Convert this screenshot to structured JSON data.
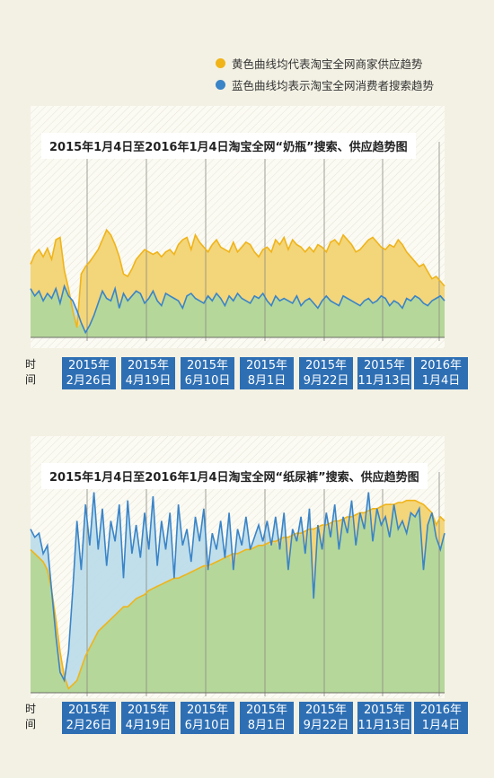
{
  "legend": {
    "supply_label": "黄色曲线均代表淘宝全网商家供应趋势",
    "search_label": "蓝色曲线均表示淘宝全网消费者搜索趋势",
    "supply_color": "#f0b419",
    "search_color": "#3a84c8"
  },
  "time_label_chars": [
    "时",
    "间"
  ],
  "colors": {
    "supply_fill": "#f3d57a",
    "supply_line": "#f0b419",
    "search_fill_upper": "#b9dbea",
    "search_line": "#3a84c8",
    "overlap_fill": "#b5d79a",
    "tick_bg": "#2e6fb4"
  },
  "chart_data": [
    {
      "type": "area",
      "title": "2015年1月4日至2016年1月4日淘宝全网“奶瓶”搜索、供应趋势图",
      "x_tick_labels": [
        [
          "2015年",
          "2月26日"
        ],
        [
          "2015年",
          "4月19日"
        ],
        [
          "2015年",
          "6月10日"
        ],
        [
          "2015年",
          "8月1日"
        ],
        [
          "2015年",
          "9月22日"
        ],
        [
          "2015年",
          "11月13日"
        ],
        [
          "2016年",
          "1月4日"
        ]
      ],
      "x_unit": "week index (0 = 2015年1月4日, 52 = 2016年1月4日)",
      "y_unit": "relative index (0–100), no printed scale",
      "series": [
        {
          "name": "供应",
          "values": [
            60,
            68,
            72,
            66,
            73,
            64,
            80,
            82,
            55,
            40,
            22,
            8,
            52,
            58,
            62,
            67,
            72,
            80,
            88,
            84,
            76,
            66,
            52,
            50,
            56,
            64,
            68,
            72,
            70,
            68,
            70,
            66,
            70,
            72,
            68,
            76,
            80,
            82,
            72,
            84,
            78,
            74,
            70,
            76,
            80,
            74,
            72,
            70,
            78,
            70,
            74,
            78,
            76,
            70,
            66,
            72,
            74,
            70,
            80,
            76,
            82,
            72,
            80,
            76,
            74,
            70,
            74,
            70,
            76,
            74,
            70,
            78,
            80,
            76,
            84,
            80,
            76,
            70,
            72,
            76,
            80,
            82,
            78,
            74,
            72,
            76,
            74,
            80,
            76,
            70,
            66,
            62,
            58,
            60,
            54,
            48,
            50,
            46,
            42
          ]
        },
        {
          "name": "搜索",
          "values": [
            40,
            34,
            38,
            30,
            36,
            32,
            40,
            28,
            42,
            34,
            30,
            22,
            12,
            4,
            10,
            18,
            28,
            38,
            32,
            30,
            40,
            24,
            36,
            30,
            34,
            38,
            36,
            28,
            32,
            38,
            30,
            26,
            36,
            34,
            32,
            30,
            24,
            34,
            36,
            32,
            30,
            28,
            34,
            30,
            36,
            32,
            26,
            34,
            30,
            36,
            32,
            30,
            28,
            34,
            32,
            36,
            30,
            26,
            34,
            30,
            32,
            30,
            28,
            34,
            26,
            30,
            32,
            28,
            24,
            30,
            34,
            30,
            28,
            26,
            34,
            32,
            30,
            28,
            26,
            30,
            32,
            28,
            30,
            34,
            32,
            26,
            30,
            28,
            24,
            32,
            30,
            34,
            32,
            28,
            26,
            30,
            32,
            34,
            30
          ]
        }
      ]
    },
    {
      "type": "area",
      "title": "2015年1月4日至2016年1月4日淘宝全网“纸尿裤”搜索、供应趋势图",
      "x_tick_labels": [
        [
          "2015年",
          "2月26日"
        ],
        [
          "2015年",
          "4月19日"
        ],
        [
          "2015年",
          "6月10日"
        ],
        [
          "2015年",
          "8月1日"
        ],
        [
          "2015年",
          "9月22日"
        ],
        [
          "2015年",
          "11月13日"
        ],
        [
          "2016年",
          "1月4日"
        ]
      ],
      "x_unit": "week index (0 = 2015年1月4日, 52 = 2016年1月4日)",
      "y_unit": "relative index (0–100), no printed scale",
      "series": [
        {
          "name": "供应",
          "values": [
            70,
            68,
            66,
            64,
            60,
            50,
            36,
            20,
            8,
            2,
            4,
            6,
            12,
            18,
            22,
            26,
            30,
            32,
            34,
            36,
            38,
            40,
            42,
            42,
            44,
            46,
            47,
            48,
            50,
            51,
            52,
            53,
            54,
            55,
            56,
            56,
            57,
            58,
            59,
            60,
            61,
            62,
            62,
            63,
            64,
            65,
            66,
            67,
            68,
            68,
            69,
            70,
            70,
            71,
            72,
            72,
            73,
            74,
            74,
            75,
            76,
            76,
            77,
            78,
            78,
            79,
            80,
            80,
            81,
            82,
            82,
            83,
            84,
            84,
            85,
            86,
            86,
            87,
            88,
            88,
            89,
            90,
            90,
            91,
            92,
            92,
            92,
            93,
            93,
            94,
            94,
            94,
            93,
            92,
            90,
            88,
            82,
            86,
            84
          ]
        },
        {
          "name": "搜索",
          "values": [
            80,
            76,
            78,
            68,
            72,
            50,
            28,
            10,
            6,
            20,
            50,
            84,
            60,
            92,
            72,
            98,
            70,
            90,
            62,
            84,
            74,
            92,
            56,
            94,
            68,
            82,
            66,
            88,
            70,
            96,
            62,
            84,
            70,
            88,
            56,
            92,
            72,
            80,
            64,
            86,
            74,
            90,
            60,
            78,
            70,
            84,
            66,
            88,
            60,
            80,
            72,
            86,
            70,
            76,
            82,
            74,
            84,
            72,
            86,
            70,
            88,
            60,
            80,
            74,
            86,
            68,
            90,
            46,
            82,
            70,
            88,
            76,
            92,
            70,
            86,
            78,
            94,
            72,
            88,
            80,
            98,
            74,
            90,
            82,
            86,
            76,
            92,
            80,
            84,
            78,
            88,
            86,
            90,
            60,
            82,
            88,
            76,
            70,
            78
          ]
        }
      ]
    }
  ]
}
